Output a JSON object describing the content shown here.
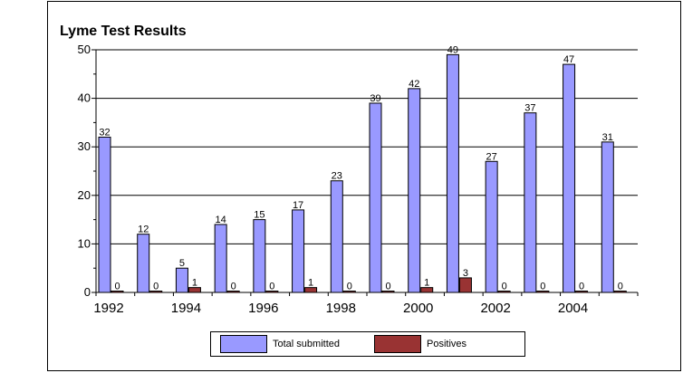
{
  "colors": {
    "total": "#9999ff",
    "positives": "#993333"
  },
  "chart_data": {
    "type": "bar",
    "title": "Lyme Test Results",
    "xlabel": "",
    "ylabel": "",
    "ylim": [
      0,
      50
    ],
    "yticks": [
      "0",
      "10",
      "20",
      "30",
      "40",
      "50"
    ],
    "categories": [
      "1992",
      "1993",
      "1994",
      "1995",
      "1996",
      "1997",
      "1998",
      "1999",
      "2000",
      "2001",
      "2002",
      "2003",
      "2004",
      "2005"
    ],
    "xtick_labels": [
      "1992",
      "",
      "1994",
      "",
      "1996",
      "",
      "1998",
      "",
      "2000",
      "",
      "2002",
      "",
      "2004",
      ""
    ],
    "series": [
      {
        "name": "Total submitted",
        "values": [
          32,
          12,
          5,
          14,
          15,
          17,
          23,
          39,
          42,
          49,
          27,
          37,
          47,
          31
        ],
        "labels": [
          "32",
          "12",
          "5",
          "14",
          "15",
          "17",
          "23",
          "39",
          "42",
          "49",
          "27",
          "37",
          "47",
          "31"
        ]
      },
      {
        "name": "Positives",
        "values": [
          0,
          0,
          1,
          0,
          0,
          1,
          0,
          0,
          1,
          3,
          0,
          0,
          0,
          0
        ],
        "labels": [
          "0",
          "0",
          "1",
          "0",
          "0",
          "1",
          "0",
          "0",
          "1",
          "3",
          "0",
          "0",
          "0",
          "0"
        ]
      }
    ],
    "legend_position": "bottom",
    "grid": true
  }
}
